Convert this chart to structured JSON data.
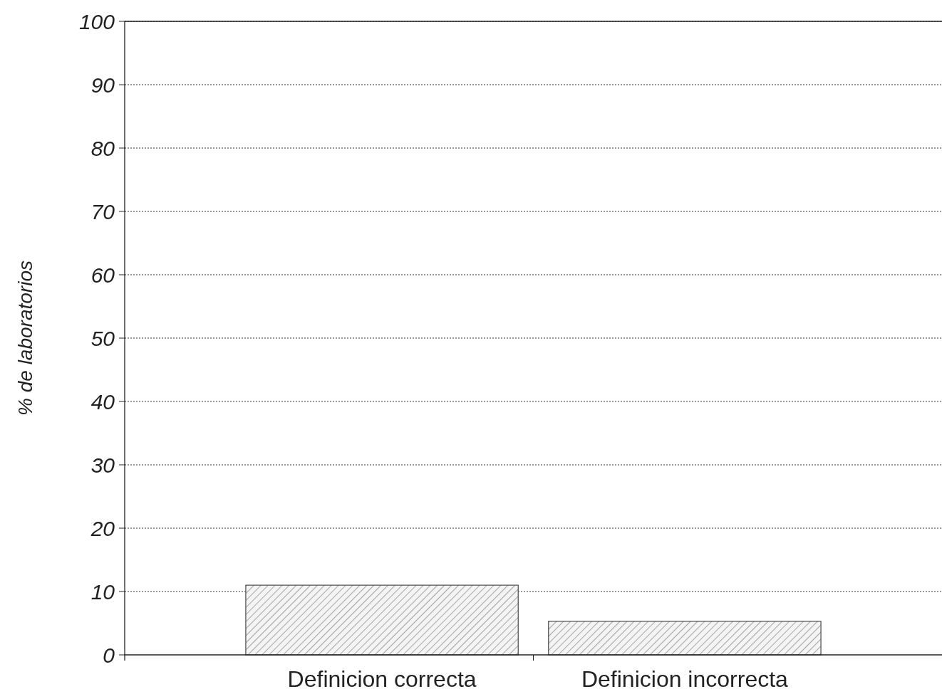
{
  "chart_data": {
    "type": "bar",
    "ylabel": "% de laboratorios",
    "categories": [
      "Definicion correcta",
      "Definicion incorrecta"
    ],
    "values": [
      11,
      5.3
    ],
    "color": "#555555",
    "ylim": [
      0,
      100
    ],
    "yticks": [
      0,
      10,
      20,
      30,
      40,
      50,
      60,
      70,
      80,
      90,
      100
    ],
    "grid": "y"
  }
}
